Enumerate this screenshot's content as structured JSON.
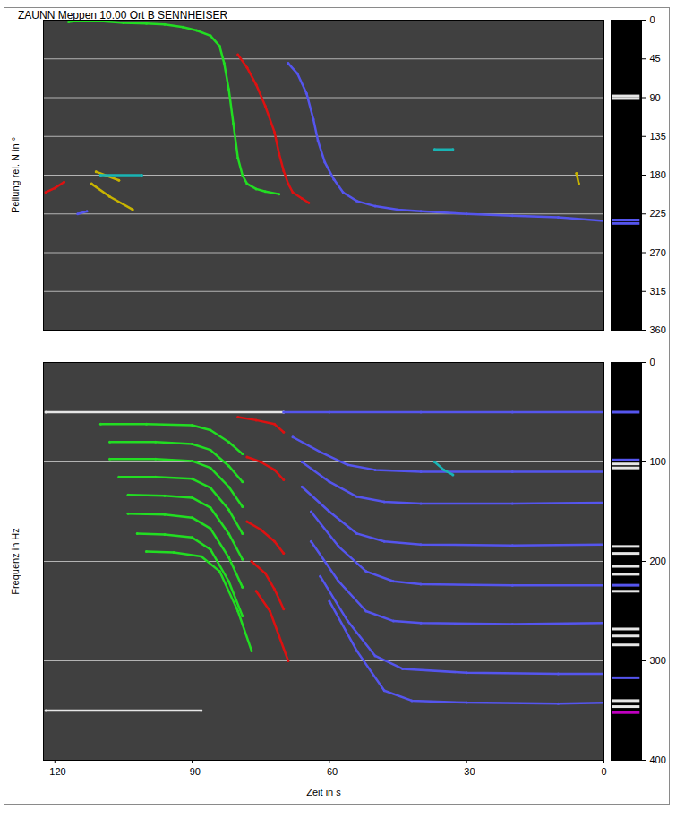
{
  "title": "ZAUNN Meppen 10.00 Ort B SENNHEISER",
  "chart_data": [
    {
      "type": "line",
      "ylabel": "Peilung rel. N in °",
      "xlim": [
        -122.5,
        0
      ],
      "ylim": [
        0,
        360
      ],
      "yticks": [
        0,
        45,
        90,
        135,
        180,
        225,
        270,
        315,
        360
      ],
      "grid": true,
      "tick_labels": "y",
      "series": [
        {
          "color": "#22dd22",
          "x": [
            -117,
            -114,
            -110,
            -105,
            -100,
            -96,
            -92,
            -89,
            -86,
            -84,
            -83,
            -82,
            -81,
            -80,
            -79,
            -78,
            -76,
            -74,
            -71
          ],
          "values": [
            2,
            0,
            1,
            3,
            4,
            5,
            8,
            12,
            18,
            30,
            50,
            80,
            120,
            160,
            180,
            190,
            196,
            199,
            202
          ]
        },
        {
          "color": "#dd1111",
          "x": [
            -80,
            -78,
            -76,
            -74,
            -72,
            -71,
            -70,
            -69,
            -68,
            -66,
            -64.5
          ],
          "values": [
            40,
            55,
            75,
            100,
            130,
            155,
            175,
            190,
            200,
            207,
            212
          ]
        },
        {
          "color": "#5555ee",
          "x": [
            -69,
            -67,
            -65,
            -63.5,
            -62.5,
            -61,
            -59,
            -57,
            -54,
            -50,
            -45,
            -40,
            -30,
            -20,
            -10,
            0
          ],
          "values": [
            50,
            62,
            85,
            115,
            140,
            165,
            185,
            200,
            210,
            216,
            220,
            222,
            225,
            227,
            229,
            233
          ]
        },
        {
          "color": "#dd1111",
          "x": [
            -122,
            -120,
            -118
          ],
          "values": [
            200,
            195,
            188
          ]
        },
        {
          "color": "#5555ee",
          "x": [
            -115,
            -113
          ],
          "values": [
            225,
            222
          ]
        },
        {
          "color": "#c8b400",
          "x": [
            -112,
            -108,
            -103
          ],
          "values": [
            190,
            205,
            220
          ]
        },
        {
          "color": "#c8b400",
          "x": [
            -111,
            -106
          ],
          "values": [
            176,
            186
          ]
        },
        {
          "color": "#19b4b4",
          "x": [
            -110,
            -101
          ],
          "values": [
            180,
            180
          ]
        },
        {
          "color": "#19b4b4",
          "x": [
            -37,
            -33
          ],
          "values": [
            150,
            150
          ]
        },
        {
          "color": "#c8b400",
          "x": [
            -6,
            -5.5
          ],
          "values": [
            178,
            190
          ]
        }
      ],
      "bar_lines": {
        "values": [
          88,
          91,
          232,
          236
        ],
        "colors": [
          "#e6e6e6",
          "#e6e6e6",
          "#5555ee",
          "#5555ee"
        ]
      }
    },
    {
      "type": "line",
      "xlabel": "Zeit in s",
      "ylabel": "Frequenz in Hz",
      "xlim": [
        -122.5,
        0
      ],
      "xticks": [
        -120,
        -90,
        -60,
        -30,
        0
      ],
      "ylim": [
        0,
        400
      ],
      "yticks": [
        0,
        100,
        200,
        300,
        400
      ],
      "grid": true,
      "tick_labels": true,
      "series": [
        {
          "color": "#e6e6e6",
          "x": [
            -122,
            -70
          ],
          "values": [
            50,
            50
          ]
        },
        {
          "color": "#e6e6e6",
          "x": [
            -122,
            -88
          ],
          "values": [
            350,
            350
          ]
        },
        {
          "color": "#22dd22",
          "x": [
            -110,
            -100,
            -90,
            -86,
            -82,
            -79
          ],
          "values": [
            62,
            62,
            63,
            68,
            80,
            92
          ]
        },
        {
          "color": "#22dd22",
          "x": [
            -108,
            -98,
            -90,
            -86,
            -82,
            -79
          ],
          "values": [
            80,
            80,
            82,
            88,
            104,
            120
          ]
        },
        {
          "color": "#22dd22",
          "x": [
            -108,
            -98,
            -90,
            -86,
            -82,
            -79
          ],
          "values": [
            97,
            97,
            99,
            106,
            125,
            145
          ]
        },
        {
          "color": "#22dd22",
          "x": [
            -106,
            -98,
            -90,
            -86,
            -82,
            -79
          ],
          "values": [
            115,
            115,
            117,
            126,
            148,
            172
          ]
        },
        {
          "color": "#22dd22",
          "x": [
            -104,
            -96,
            -90,
            -86,
            -82,
            -79
          ],
          "values": [
            133,
            134,
            136,
            146,
            172,
            198
          ]
        },
        {
          "color": "#22dd22",
          "x": [
            -104,
            -96,
            -90,
            -86,
            -82,
            -79
          ],
          "values": [
            152,
            153,
            156,
            167,
            196,
            226
          ]
        },
        {
          "color": "#22dd22",
          "x": [
            -102,
            -96,
            -90,
            -86,
            -82,
            -79
          ],
          "values": [
            172,
            173,
            176,
            188,
            220,
            255
          ]
        },
        {
          "color": "#22dd22",
          "x": [
            -100,
            -94,
            -88,
            -84,
            -80,
            -77
          ],
          "values": [
            190,
            191,
            195,
            210,
            250,
            290
          ]
        },
        {
          "color": "#dd1111",
          "x": [
            -80,
            -76,
            -72,
            -70
          ],
          "values": [
            55,
            58,
            62,
            70
          ]
        },
        {
          "color": "#dd1111",
          "x": [
            -78,
            -75,
            -72,
            -70
          ],
          "values": [
            95,
            100,
            108,
            118
          ]
        },
        {
          "color": "#dd1111",
          "x": [
            -78,
            -75,
            -72,
            -70
          ],
          "values": [
            160,
            168,
            180,
            192
          ]
        },
        {
          "color": "#dd1111",
          "x": [
            -77,
            -74,
            -72,
            -70
          ],
          "values": [
            200,
            212,
            228,
            248
          ]
        },
        {
          "color": "#dd1111",
          "x": [
            -76,
            -73,
            -71,
            -69
          ],
          "values": [
            230,
            250,
            275,
            300
          ]
        },
        {
          "color": "#5555ee",
          "x": [
            -70,
            -60,
            -40,
            -20,
            0
          ],
          "values": [
            50,
            50,
            50,
            50,
            50
          ]
        },
        {
          "color": "#5555ee",
          "x": [
            -68,
            -62,
            -56,
            -50,
            -40,
            -20,
            0
          ],
          "values": [
            75,
            90,
            103,
            108,
            110,
            110,
            110
          ]
        },
        {
          "color": "#5555ee",
          "x": [
            -66,
            -60,
            -54,
            -48,
            -40,
            -20,
            0
          ],
          "values": [
            100,
            120,
            135,
            140,
            142,
            142,
            141
          ]
        },
        {
          "color": "#5555ee",
          "x": [
            -66,
            -60,
            -54,
            -48,
            -40,
            -20,
            0
          ],
          "values": [
            125,
            150,
            172,
            180,
            183,
            184,
            183
          ]
        },
        {
          "color": "#5555ee",
          "x": [
            -64,
            -58,
            -52,
            -46,
            -40,
            -20,
            0
          ],
          "values": [
            150,
            185,
            210,
            220,
            223,
            224,
            224
          ]
        },
        {
          "color": "#5555ee",
          "x": [
            -64,
            -58,
            -52,
            -46,
            -40,
            -20,
            0
          ],
          "values": [
            180,
            220,
            250,
            260,
            262,
            263,
            262
          ]
        },
        {
          "color": "#5555ee",
          "x": [
            -62,
            -56,
            -50,
            -44,
            -30,
            -10,
            0
          ],
          "values": [
            215,
            260,
            295,
            308,
            312,
            313,
            313
          ]
        },
        {
          "color": "#5555ee",
          "x": [
            -60,
            -54,
            -48,
            -42,
            -30,
            -10,
            0
          ],
          "values": [
            240,
            290,
            330,
            340,
            342,
            343,
            342
          ]
        },
        {
          "color": "#19b4b4",
          "x": [
            -37,
            -35,
            -33
          ],
          "values": [
            100,
            108,
            113
          ]
        }
      ],
      "bar_lines": {
        "values": [
          50,
          98,
          102,
          106,
          185,
          192,
          205,
          213,
          224,
          230,
          268,
          275,
          284,
          317,
          340,
          346,
          352
        ],
        "colors": [
          "#5555ee",
          "#5555ee",
          "#e6e6e6",
          "#e6e6e6",
          "#e6e6e6",
          "#e6e6e6",
          "#e6e6e6",
          "#e6e6e6",
          "#5555ee",
          "#e6e6e6",
          "#e6e6e6",
          "#e6e6e6",
          "#e6e6e6",
          "#5555ee",
          "#e6e6e6",
          "#e6e6e6",
          "#c000c0"
        ]
      }
    }
  ]
}
